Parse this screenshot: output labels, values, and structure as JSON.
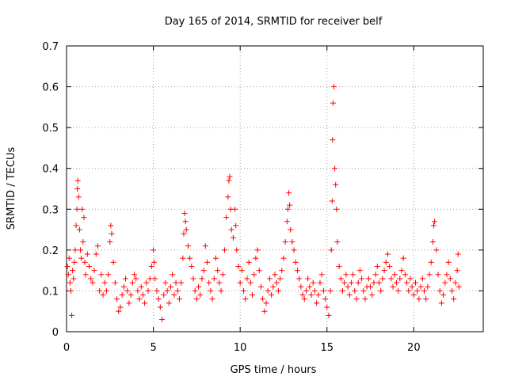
{
  "chart_data": {
    "type": "scatter",
    "title": "Day 165 of 2014, SRMTID for receiver belf",
    "xlabel": "GPS time / hours",
    "ylabel": "SRMTID / TECUs",
    "xlim": [
      0,
      24
    ],
    "ylim": [
      0,
      0.7
    ],
    "xticks": [
      0,
      5,
      10,
      15,
      20
    ],
    "yticks": [
      0,
      0.1,
      0.2,
      0.3,
      0.4,
      0.5,
      0.6,
      0.7
    ],
    "xtick_labels": [
      "0",
      "5",
      "10",
      "15",
      "20"
    ],
    "ytick_labels": [
      "0",
      "0.1",
      "0.2",
      "0.3",
      "0.4",
      "0.5",
      "0.6",
      "0.7"
    ],
    "grid": true,
    "marker": "+",
    "color": "#ff0000",
    "series": [
      {
        "name": "SRMTID",
        "points": [
          [
            0.05,
            0.16
          ],
          [
            0.1,
            0.14
          ],
          [
            0.15,
            0.18
          ],
          [
            0.2,
            0.12
          ],
          [
            0.25,
            0.1
          ],
          [
            0.3,
            0.04
          ],
          [
            0.35,
            0.15
          ],
          [
            0.4,
            0.13
          ],
          [
            0.45,
            0.17
          ],
          [
            0.5,
            0.2
          ],
          [
            0.55,
            0.26
          ],
          [
            0.6,
            0.3
          ],
          [
            0.62,
            0.35
          ],
          [
            0.65,
            0.37
          ],
          [
            0.7,
            0.33
          ],
          [
            0.75,
            0.25
          ],
          [
            0.8,
            0.2
          ],
          [
            0.85,
            0.18
          ],
          [
            0.9,
            0.3
          ],
          [
            0.95,
            0.22
          ],
          [
            1.0,
            0.28
          ],
          [
            1.05,
            0.17
          ],
          [
            1.1,
            0.14
          ],
          [
            1.2,
            0.19
          ],
          [
            1.3,
            0.16
          ],
          [
            1.4,
            0.13
          ],
          [
            1.5,
            0.12
          ],
          [
            1.6,
            0.15
          ],
          [
            1.7,
            0.19
          ],
          [
            1.8,
            0.21
          ],
          [
            1.9,
            0.1
          ],
          [
            2.0,
            0.14
          ],
          [
            2.1,
            0.09
          ],
          [
            2.2,
            0.12
          ],
          [
            2.3,
            0.1
          ],
          [
            2.4,
            0.14
          ],
          [
            2.5,
            0.22
          ],
          [
            2.55,
            0.26
          ],
          [
            2.6,
            0.24
          ],
          [
            2.7,
            0.17
          ],
          [
            2.8,
            0.12
          ],
          [
            2.9,
            0.08
          ],
          [
            3.0,
            0.05
          ],
          [
            3.1,
            0.06
          ],
          [
            3.2,
            0.09
          ],
          [
            3.3,
            0.11
          ],
          [
            3.4,
            0.13
          ],
          [
            3.5,
            0.1
          ],
          [
            3.6,
            0.07
          ],
          [
            3.7,
            0.09
          ],
          [
            3.8,
            0.12
          ],
          [
            3.9,
            0.14
          ],
          [
            4.0,
            0.13
          ],
          [
            4.1,
            0.1
          ],
          [
            4.2,
            0.08
          ],
          [
            4.3,
            0.11
          ],
          [
            4.4,
            0.09
          ],
          [
            4.5,
            0.07
          ],
          [
            4.6,
            0.12
          ],
          [
            4.7,
            0.1
          ],
          [
            4.8,
            0.13
          ],
          [
            4.9,
            0.16
          ],
          [
            5.0,
            0.2
          ],
          [
            5.05,
            0.17
          ],
          [
            5.1,
            0.13
          ],
          [
            5.2,
            0.1
          ],
          [
            5.3,
            0.08
          ],
          [
            5.4,
            0.06
          ],
          [
            5.5,
            0.03
          ],
          [
            5.6,
            0.09
          ],
          [
            5.7,
            0.12
          ],
          [
            5.8,
            0.1
          ],
          [
            5.9,
            0.07
          ],
          [
            6.0,
            0.11
          ],
          [
            6.1,
            0.14
          ],
          [
            6.2,
            0.09
          ],
          [
            6.3,
            0.12
          ],
          [
            6.4,
            0.1
          ],
          [
            6.5,
            0.08
          ],
          [
            6.6,
            0.12
          ],
          [
            6.7,
            0.18
          ],
          [
            6.75,
            0.24
          ],
          [
            6.8,
            0.29
          ],
          [
            6.85,
            0.27
          ],
          [
            6.9,
            0.25
          ],
          [
            7.0,
            0.21
          ],
          [
            7.1,
            0.18
          ],
          [
            7.2,
            0.16
          ],
          [
            7.3,
            0.13
          ],
          [
            7.4,
            0.1
          ],
          [
            7.5,
            0.08
          ],
          [
            7.6,
            0.11
          ],
          [
            7.7,
            0.09
          ],
          [
            7.8,
            0.13
          ],
          [
            7.9,
            0.15
          ],
          [
            8.0,
            0.21
          ],
          [
            8.1,
            0.17
          ],
          [
            8.2,
            0.12
          ],
          [
            8.3,
            0.1
          ],
          [
            8.4,
            0.08
          ],
          [
            8.5,
            0.13
          ],
          [
            8.6,
            0.18
          ],
          [
            8.7,
            0.15
          ],
          [
            8.8,
            0.12
          ],
          [
            8.9,
            0.1
          ],
          [
            9.0,
            0.14
          ],
          [
            9.1,
            0.2
          ],
          [
            9.2,
            0.28
          ],
          [
            9.3,
            0.33
          ],
          [
            9.35,
            0.37
          ],
          [
            9.4,
            0.38
          ],
          [
            9.45,
            0.3
          ],
          [
            9.5,
            0.25
          ],
          [
            9.6,
            0.23
          ],
          [
            9.7,
            0.3
          ],
          [
            9.75,
            0.26
          ],
          [
            9.8,
            0.2
          ],
          [
            9.9,
            0.16
          ],
          [
            10.0,
            0.12
          ],
          [
            10.1,
            0.15
          ],
          [
            10.2,
            0.1
          ],
          [
            10.3,
            0.08
          ],
          [
            10.4,
            0.13
          ],
          [
            10.5,
            0.17
          ],
          [
            10.6,
            0.12
          ],
          [
            10.7,
            0.09
          ],
          [
            10.8,
            0.14
          ],
          [
            10.9,
            0.18
          ],
          [
            11.0,
            0.2
          ],
          [
            11.1,
            0.15
          ],
          [
            11.2,
            0.11
          ],
          [
            11.3,
            0.08
          ],
          [
            11.4,
            0.05
          ],
          [
            11.5,
            0.07
          ],
          [
            11.6,
            0.1
          ],
          [
            11.7,
            0.13
          ],
          [
            11.8,
            0.09
          ],
          [
            11.9,
            0.11
          ],
          [
            12.0,
            0.14
          ],
          [
            12.1,
            0.12
          ],
          [
            12.2,
            0.1
          ],
          [
            12.3,
            0.13
          ],
          [
            12.4,
            0.15
          ],
          [
            12.5,
            0.18
          ],
          [
            12.6,
            0.22
          ],
          [
            12.7,
            0.27
          ],
          [
            12.75,
            0.3
          ],
          [
            12.8,
            0.34
          ],
          [
            12.85,
            0.31
          ],
          [
            12.9,
            0.25
          ],
          [
            13.0,
            0.22
          ],
          [
            13.1,
            0.2
          ],
          [
            13.2,
            0.17
          ],
          [
            13.3,
            0.15
          ],
          [
            13.4,
            0.13
          ],
          [
            13.5,
            0.11
          ],
          [
            13.6,
            0.09
          ],
          [
            13.7,
            0.08
          ],
          [
            13.8,
            0.1
          ],
          [
            13.9,
            0.13
          ],
          [
            14.0,
            0.11
          ],
          [
            14.1,
            0.09
          ],
          [
            14.2,
            0.12
          ],
          [
            14.3,
            0.1
          ],
          [
            14.4,
            0.07
          ],
          [
            14.5,
            0.09
          ],
          [
            14.6,
            0.12
          ],
          [
            14.7,
            0.14
          ],
          [
            14.8,
            0.1
          ],
          [
            14.9,
            0.08
          ],
          [
            15.0,
            0.06
          ],
          [
            15.1,
            0.04
          ],
          [
            15.2,
            0.1
          ],
          [
            15.25,
            0.2
          ],
          [
            15.3,
            0.32
          ],
          [
            15.32,
            0.47
          ],
          [
            15.35,
            0.56
          ],
          [
            15.4,
            0.6
          ],
          [
            15.45,
            0.4
          ],
          [
            15.5,
            0.36
          ],
          [
            15.55,
            0.3
          ],
          [
            15.6,
            0.22
          ],
          [
            15.7,
            0.16
          ],
          [
            15.8,
            0.13
          ],
          [
            15.9,
            0.1
          ],
          [
            16.0,
            0.12
          ],
          [
            16.1,
            0.14
          ],
          [
            16.2,
            0.11
          ],
          [
            16.3,
            0.09
          ],
          [
            16.4,
            0.12
          ],
          [
            16.5,
            0.14
          ],
          [
            16.6,
            0.1
          ],
          [
            16.7,
            0.08
          ],
          [
            16.8,
            0.12
          ],
          [
            16.9,
            0.15
          ],
          [
            17.0,
            0.13
          ],
          [
            17.1,
            0.1
          ],
          [
            17.2,
            0.08
          ],
          [
            17.3,
            0.11
          ],
          [
            17.4,
            0.13
          ],
          [
            17.5,
            0.11
          ],
          [
            17.6,
            0.09
          ],
          [
            17.7,
            0.12
          ],
          [
            17.8,
            0.14
          ],
          [
            17.9,
            0.16
          ],
          [
            18.0,
            0.12
          ],
          [
            18.1,
            0.1
          ],
          [
            18.2,
            0.13
          ],
          [
            18.3,
            0.15
          ],
          [
            18.4,
            0.17
          ],
          [
            18.5,
            0.19
          ],
          [
            18.6,
            0.16
          ],
          [
            18.7,
            0.13
          ],
          [
            18.8,
            0.11
          ],
          [
            18.9,
            0.14
          ],
          [
            19.0,
            0.12
          ],
          [
            19.1,
            0.1
          ],
          [
            19.2,
            0.13
          ],
          [
            19.3,
            0.15
          ],
          [
            19.4,
            0.18
          ],
          [
            19.5,
            0.14
          ],
          [
            19.6,
            0.12
          ],
          [
            19.7,
            0.1
          ],
          [
            19.8,
            0.13
          ],
          [
            19.9,
            0.11
          ],
          [
            20.0,
            0.09
          ],
          [
            20.1,
            0.12
          ],
          [
            20.2,
            0.1
          ],
          [
            20.3,
            0.08
          ],
          [
            20.4,
            0.11
          ],
          [
            20.5,
            0.13
          ],
          [
            20.6,
            0.1
          ],
          [
            20.7,
            0.08
          ],
          [
            20.8,
            0.11
          ],
          [
            20.9,
            0.14
          ],
          [
            21.0,
            0.17
          ],
          [
            21.1,
            0.22
          ],
          [
            21.15,
            0.26
          ],
          [
            21.2,
            0.27
          ],
          [
            21.3,
            0.2
          ],
          [
            21.4,
            0.14
          ],
          [
            21.5,
            0.1
          ],
          [
            21.6,
            0.07
          ],
          [
            21.7,
            0.09
          ],
          [
            21.8,
            0.12
          ],
          [
            21.9,
            0.14
          ],
          [
            22.0,
            0.17
          ],
          [
            22.1,
            0.13
          ],
          [
            22.2,
            0.1
          ],
          [
            22.3,
            0.08
          ],
          [
            22.4,
            0.12
          ],
          [
            22.5,
            0.15
          ],
          [
            22.55,
            0.19
          ],
          [
            22.6,
            0.11
          ]
        ]
      }
    ]
  }
}
